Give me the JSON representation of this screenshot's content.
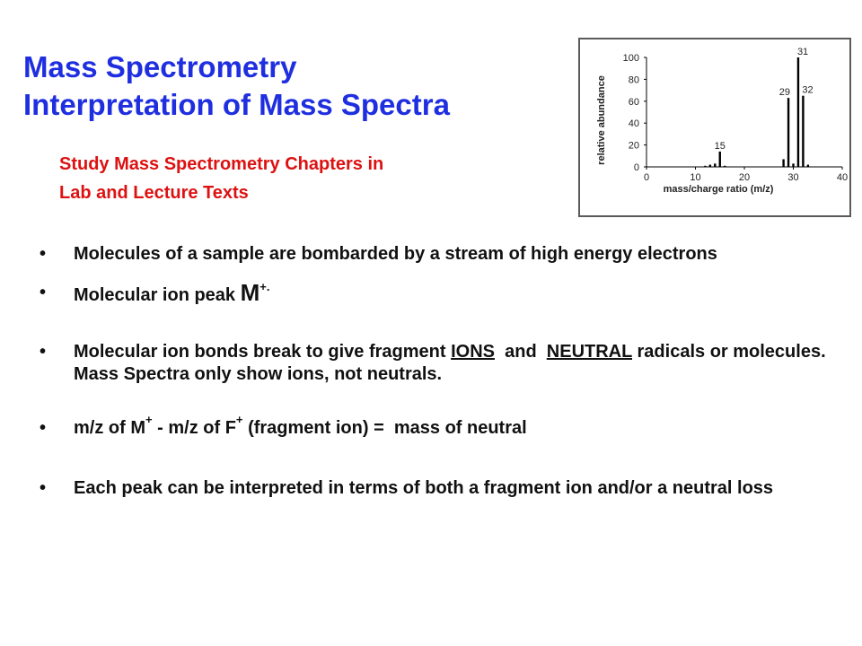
{
  "header": {
    "title_line1": "Mass Spectrometry",
    "title_line2": "Interpretation of Mass Spectra",
    "subtitle_line1": "Study Mass Spectrometry Chapters in",
    "subtitle_line2": "Lab and Lecture Texts"
  },
  "colors": {
    "title": "#1f2fe0",
    "subtitle": "#dd1111",
    "body_text": "#111111"
  },
  "bullets": {
    "bullet_glyph": "•",
    "b1": "Molecules of a sample are bombarded by a stream of high energy electrons",
    "b2_text": "Molecular ion peak ",
    "b2_symbol": "M",
    "b2_sup": "+.",
    "b3_part1": "Molecular ion bonds break to give fragment ",
    "b3_ions": "IONS",
    "b3_and": "  and  ",
    "b3_neutral": "NEUTRAL",
    "b3_part2": " radicals or molecules.  Mass Spectra only show ions, not neutrals.",
    "b4_part1": "m/z of M",
    "b4_sup1": "+",
    "b4_part2": " - m/z of F",
    "b4_sup2": "+",
    "b4_part3": " (fragment ion) =  mass of neutral",
    "b5": "Each peak can be interpreted in terms of both a fragment ion and/or a neutral loss"
  },
  "chart_data": {
    "type": "bar",
    "xlabel": "mass/charge ratio (m/z)",
    "ylabel": "relative abundance",
    "xlim": [
      0,
      40
    ],
    "ylim": [
      0,
      100
    ],
    "xticks": [
      0,
      10,
      20,
      30,
      40
    ],
    "yticks": [
      0,
      20,
      40,
      60,
      80,
      100
    ],
    "grid": false,
    "peaks": [
      {
        "x": 12,
        "y": 1
      },
      {
        "x": 13,
        "y": 2
      },
      {
        "x": 14,
        "y": 3
      },
      {
        "x": 15,
        "y": 14,
        "label": "15"
      },
      {
        "x": 16,
        "y": 1
      },
      {
        "x": 28,
        "y": 7
      },
      {
        "x": 29,
        "y": 63,
        "label": "29"
      },
      {
        "x": 30,
        "y": 3
      },
      {
        "x": 31,
        "y": 100,
        "label": "31"
      },
      {
        "x": 32,
        "y": 65,
        "label": "32"
      },
      {
        "x": 33,
        "y": 2
      }
    ]
  }
}
